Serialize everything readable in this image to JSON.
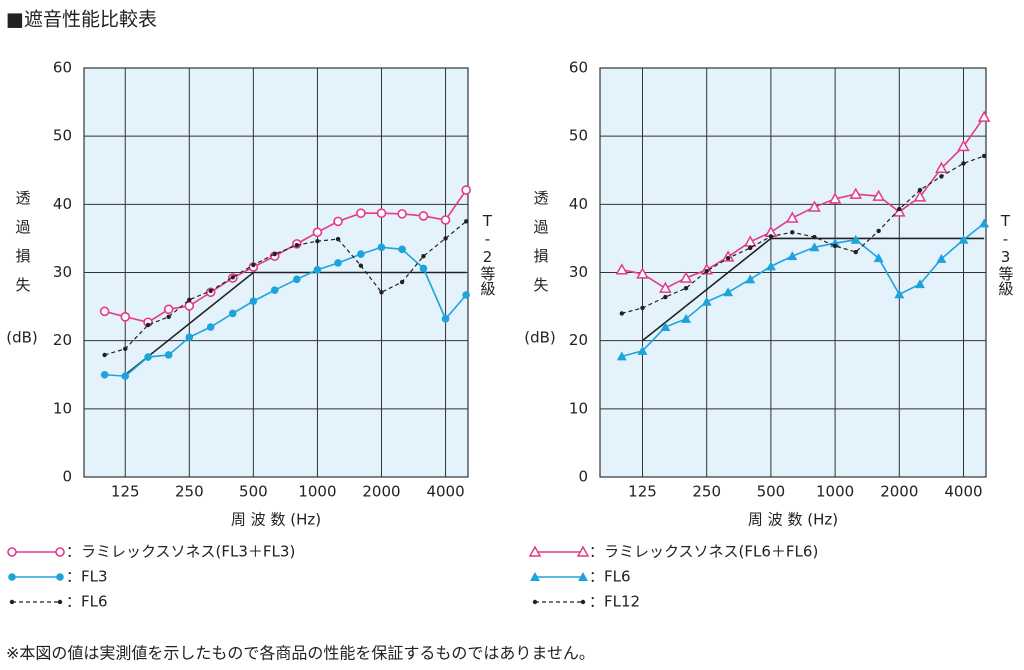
{
  "title": "■遮音性能比較表",
  "note": "※本図の値は実測値を示したもので各商品の性能を保証するものではありません。",
  "chart_data": [
    {
      "type": "line",
      "xlog": true,
      "grid": true,
      "ylabel": "透過損失",
      "yunit": "(dB)",
      "xlabel": "周 波 数 (Hz)",
      "x": [
        100,
        125,
        160,
        200,
        250,
        315,
        400,
        500,
        630,
        800,
        1000,
        1250,
        1600,
        2000,
        2500,
        3150,
        4000,
        5000
      ],
      "xlim": [
        80,
        5100
      ],
      "xticks": [
        125,
        250,
        500,
        1000,
        2000,
        4000
      ],
      "ylim": [
        0,
        60
      ],
      "yticks": [
        0,
        10,
        20,
        30,
        40,
        50,
        60
      ],
      "series": [
        {
          "name": "：ラミレックスソネス(FL3＋FL3)",
          "color": "#e4398a",
          "marker": "circle-open",
          "dashed": false,
          "values": [
            24.3,
            23.5,
            22.7,
            24.6,
            25.1,
            27.1,
            29.2,
            30.8,
            32.4,
            34.2,
            35.9,
            37.5,
            38.7,
            38.7,
            38.6,
            38.3,
            37.7,
            42.1
          ]
        },
        {
          "name": "：FL3",
          "color": "#1fa3dc",
          "marker": "circle",
          "dashed": false,
          "values": [
            15,
            14.8,
            17.6,
            17.9,
            20.5,
            22,
            24,
            25.8,
            27.4,
            29,
            30.4,
            31.4,
            32.7,
            33.7,
            33.4,
            30.6,
            23.2,
            26.7
          ]
        },
        {
          "name": "：FL6",
          "color": "#222222",
          "marker": "dot",
          "dashed": true,
          "values": [
            17.9,
            18.8,
            22.3,
            23.5,
            26,
            27.3,
            29.3,
            31.1,
            32.7,
            34,
            34.6,
            34.9,
            31,
            27.1,
            28.6,
            32.4,
            35,
            37.5
          ]
        }
      ],
      "reference": {
        "label": "T-2等級",
        "x": [
          125,
          500,
          5000
        ],
        "values": [
          15,
          30,
          30
        ]
      }
    },
    {
      "type": "line",
      "xlog": true,
      "grid": true,
      "ylabel": "透過損失",
      "yunit": "(dB)",
      "xlabel": "周 波 数 (Hz)",
      "x": [
        100,
        125,
        160,
        200,
        250,
        315,
        400,
        500,
        630,
        800,
        1000,
        1250,
        1600,
        2000,
        2500,
        3150,
        4000,
        5000
      ],
      "xlim": [
        79,
        5100
      ],
      "xticks": [
        125,
        250,
        500,
        1000,
        2000,
        4000
      ],
      "ylim": [
        0,
        60
      ],
      "yticks": [
        0,
        10,
        20,
        30,
        40,
        50,
        60
      ],
      "series": [
        {
          "name": "：ラミレックスソネス(FL6＋FL6)",
          "color": "#e4398a",
          "marker": "triangle-open",
          "dashed": false,
          "values": [
            30.4,
            29.8,
            27.7,
            29.2,
            30.4,
            32.3,
            34.5,
            35.9,
            38,
            39.6,
            40.8,
            41.5,
            41.2,
            38.9,
            41.1,
            45.3,
            48.5,
            52.8
          ]
        },
        {
          "name": "：FL6",
          "color": "#1fa3dc",
          "marker": "triangle",
          "dashed": false,
          "values": [
            17.7,
            18.5,
            22,
            23.2,
            25.7,
            27.1,
            29,
            30.9,
            32.4,
            33.7,
            34.3,
            34.8,
            32.1,
            26.8,
            28.3,
            32,
            34.8,
            37.2
          ]
        },
        {
          "name": "：FL12",
          "color": "#222222",
          "marker": "dot",
          "dashed": true,
          "values": [
            24,
            24.8,
            26.4,
            27.7,
            30.2,
            32.1,
            33.6,
            35.3,
            35.9,
            35.2,
            33.9,
            33,
            36.1,
            39.3,
            42.1,
            44.1,
            46,
            47.1
          ]
        }
      ],
      "reference": {
        "label": "T-3等級",
        "x": [
          125,
          500,
          5000
        ],
        "values": [
          20,
          35,
          35
        ]
      }
    }
  ]
}
